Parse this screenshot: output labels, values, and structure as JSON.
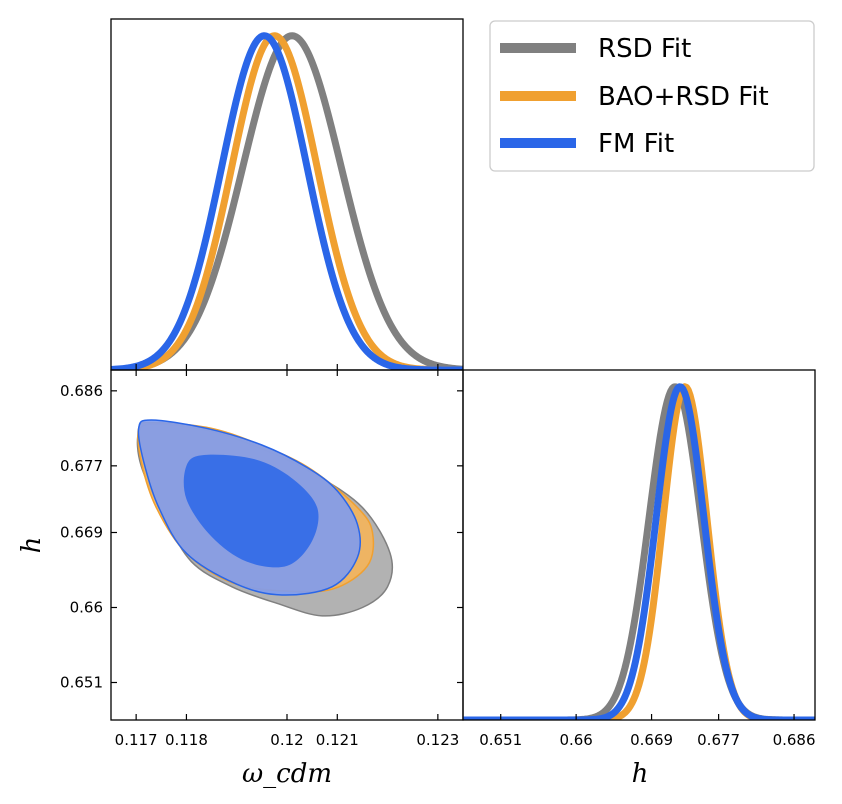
{
  "chart_data": [
    {
      "type": "line",
      "panel": "marginal-omega-cdm",
      "title": "",
      "xlabel": "",
      "ylabel": "",
      "xlim": [
        0.1165,
        0.1235
      ],
      "ylim": [
        0,
        1.05
      ],
      "series": [
        {
          "name": "RSD Fit",
          "mean": 0.1201,
          "sigma": 0.00098
        },
        {
          "name": "BAO+RSD Fit",
          "mean": 0.11975,
          "sigma": 0.00085
        },
        {
          "name": "FM Fit",
          "mean": 0.11955,
          "sigma": 0.00085
        }
      ]
    },
    {
      "type": "scatter",
      "panel": "joint-omega-cdm-h",
      "title": "",
      "xlabel": "ω_cdm",
      "ylabel": "h",
      "xlim": [
        0.1165,
        0.1235
      ],
      "ylim": [
        0.6465,
        0.6885
      ],
      "xticks": [
        "0.117",
        "0.118",
        "0.12",
        "0.121",
        "0.123"
      ],
      "xtick_values": [
        0.117,
        0.118,
        0.12,
        0.121,
        0.123
      ],
      "yticks": [
        "0.686",
        "0.677",
        "0.669",
        "0.66",
        "0.651"
      ],
      "ytick_values": [
        0.686,
        0.677,
        0.669,
        0.66,
        0.651
      ],
      "contours": [
        {
          "name": "RSD Fit",
          "level": "95%",
          "center": [
            0.11985,
            0.6708
          ],
          "outline": [
            [
              0.11735,
              0.682
            ],
            [
              0.11845,
              0.6812
            ],
            [
              0.1196,
              0.6788
            ],
            [
              0.12055,
              0.676
            ],
            [
              0.1215,
              0.672
            ],
            [
              0.12205,
              0.6665
            ],
            [
              0.122,
              0.6625
            ],
            [
              0.1215,
              0.66
            ],
            [
              0.1207,
              0.659
            ],
            [
              0.1198,
              0.6605
            ],
            [
              0.1189,
              0.6625
            ],
            [
              0.1181,
              0.6655
            ],
            [
              0.11755,
              0.671
            ],
            [
              0.1171,
              0.677
            ],
            [
              0.11705,
              0.681
            ]
          ]
        },
        {
          "name": "BAO+RSD Fit",
          "level": "95%",
          "center": [
            0.1195,
            0.6722
          ],
          "outline": [
            [
              0.1173,
              0.6822
            ],
            [
              0.1185,
              0.6815
            ],
            [
              0.1196,
              0.6792
            ],
            [
              0.1205,
              0.6765
            ],
            [
              0.1214,
              0.672
            ],
            [
              0.1217,
              0.669
            ],
            [
              0.1216,
              0.665
            ],
            [
              0.1209,
              0.6622
            ],
            [
              0.1199,
              0.662
            ],
            [
              0.1189,
              0.663
            ],
            [
              0.118,
              0.6665
            ],
            [
              0.1174,
              0.672
            ],
            [
              0.1171,
              0.6775
            ],
            [
              0.11705,
              0.6815
            ]
          ]
        },
        {
          "name": "FM Fit",
          "level": "95%",
          "center": [
            0.1193,
            0.6722
          ],
          "outline": [
            [
              0.1173,
              0.6825
            ],
            [
              0.1184,
              0.6815
            ],
            [
              0.1195,
              0.6795
            ],
            [
              0.1204,
              0.6768
            ],
            [
              0.121,
              0.674
            ],
            [
              0.1214,
              0.67
            ],
            [
              0.1214,
              0.666
            ],
            [
              0.1209,
              0.6625
            ],
            [
              0.1199,
              0.6615
            ],
            [
              0.119,
              0.6628
            ],
            [
              0.118,
              0.6665
            ],
            [
              0.11745,
              0.672
            ],
            [
              0.11715,
              0.6775
            ],
            [
              0.11705,
              0.6815
            ]
          ]
        },
        {
          "name": "FM Fit",
          "level": "68%",
          "center": [
            0.11935,
            0.672
          ],
          "outline": [
            [
              0.11835,
              0.6783
            ],
            [
              0.11935,
              0.6778
            ],
            [
              0.1201,
              0.6755
            ],
            [
              0.1206,
              0.672
            ],
            [
              0.1205,
              0.668
            ],
            [
              0.12,
              0.665
            ],
            [
              0.1192,
              0.6655
            ],
            [
              0.1185,
              0.6685
            ],
            [
              0.118,
              0.673
            ],
            [
              0.118,
              0.677
            ]
          ]
        }
      ]
    },
    {
      "type": "line",
      "panel": "marginal-h",
      "title": "",
      "xlabel": "h",
      "ylabel": "",
      "xlim": [
        0.6465,
        0.6885
      ],
      "ylim": [
        0,
        1.05
      ],
      "xticks": [
        "0.651",
        "0.66",
        "0.669",
        "0.677",
        "0.686"
      ],
      "xtick_values": [
        0.651,
        0.66,
        0.669,
        0.677,
        0.686
      ],
      "series": [
        {
          "name": "RSD Fit",
          "mean": 0.6718,
          "sigma": 0.0031
        },
        {
          "name": "BAO+RSD Fit",
          "mean": 0.673,
          "sigma": 0.0026
        },
        {
          "name": "FM Fit",
          "mean": 0.6724,
          "sigma": 0.00285
        }
      ]
    }
  ],
  "legend": {
    "position": "top-right",
    "entries": [
      {
        "label": "RSD Fit",
        "color": "#808080"
      },
      {
        "label": "BAO+RSD Fit",
        "color": "#f0a030"
      },
      {
        "label": "FM Fit",
        "color": "#2a66e8"
      }
    ]
  },
  "colors": {
    "RSD Fit": "#808080",
    "BAO+RSD Fit": "#f0a030",
    "FM Fit": "#2a66e8",
    "RSD Fit_fill": "#aaaaaa",
    "BAO+RSD Fit_fill": "#f4b45a",
    "FM Fit_fill": "#7e9bee",
    "FM Fit_inner": "#2a66e8"
  }
}
